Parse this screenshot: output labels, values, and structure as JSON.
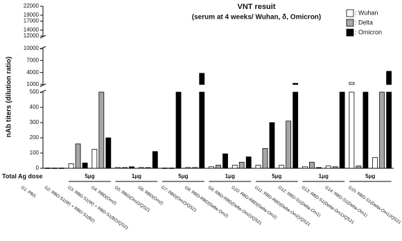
{
  "chart_data": {
    "type": "bar",
    "title": "VNT resuit",
    "subtitle": "(serum at 4 weeks/ Wuhan, δ, Omicron)",
    "y_label": "nAb titers (dilution ratio)",
    "dose_label": "Total Ag dose",
    "categories": [
      "G1: PBS",
      "G2: RBD-S1(W) + RBD-S1(B2)",
      "G3: RBD-S1(W) + RBD-S1(B2)/QS21",
      "G4: RBD(Om2)",
      "G5: RBD(Om2)/QS21",
      "G6: RBD(Om2)",
      "G7: RBD(Om2)/QS21",
      "G8: RBD-RBD(Delta-Om2)",
      "G9: RBD-RBD(Delta-Om2)/QS21",
      "G10: RBD-RBD(Delta-Om2)",
      "G11: RBD-RBD(Delta-Om2)/QS21",
      "G12: RBD-S1(Delta-Om1)",
      "G13: RBD-S1(Delta-Om1)/QS21",
      "G14: RBD-S1(Delta-Om1)",
      "G15: RBD-S1(Delta-Om1)/QS21"
    ],
    "doses": [
      null,
      "5μg",
      "5μg",
      "1μg",
      "1μg",
      "5μg",
      "5μg",
      "1μg",
      "1μg",
      "5μg",
      "5μg",
      "1μg",
      "1μg",
      "5μg",
      "5μg"
    ],
    "series": [
      {
        "name": ": Wuhan",
        "color": "#ffffff",
        "values": [
          2,
          30,
          125,
          5,
          5,
          2,
          5,
          10,
          20,
          20,
          20,
          10,
          15,
          1500,
          70
        ]
      },
      {
        "name": ": Delta",
        "color": "#a6a6a6",
        "values": [
          2,
          160,
          950,
          5,
          5,
          2,
          5,
          20,
          40,
          130,
          310,
          40,
          10,
          15,
          600
        ]
      },
      {
        "name": ": Omicron",
        "color": "#000000",
        "values": [
          2,
          35,
          200,
          10,
          110,
          600,
          3800,
          95,
          75,
          300,
          1300,
          5,
          800,
          800,
          4300
        ]
      }
    ],
    "y_segments": [
      {
        "ylim": [
          0,
          500
        ],
        "yticks": [
          0,
          100,
          200,
          300,
          400,
          500
        ]
      },
      {
        "ylim": [
          1000,
          10000
        ],
        "yticks": [
          1000,
          4000,
          7000,
          10000
        ]
      },
      {
        "ylim": [
          12000,
          22000
        ],
        "yticks": [
          12000,
          14000,
          17000,
          19000,
          22000
        ]
      }
    ],
    "legend": "top-right"
  }
}
